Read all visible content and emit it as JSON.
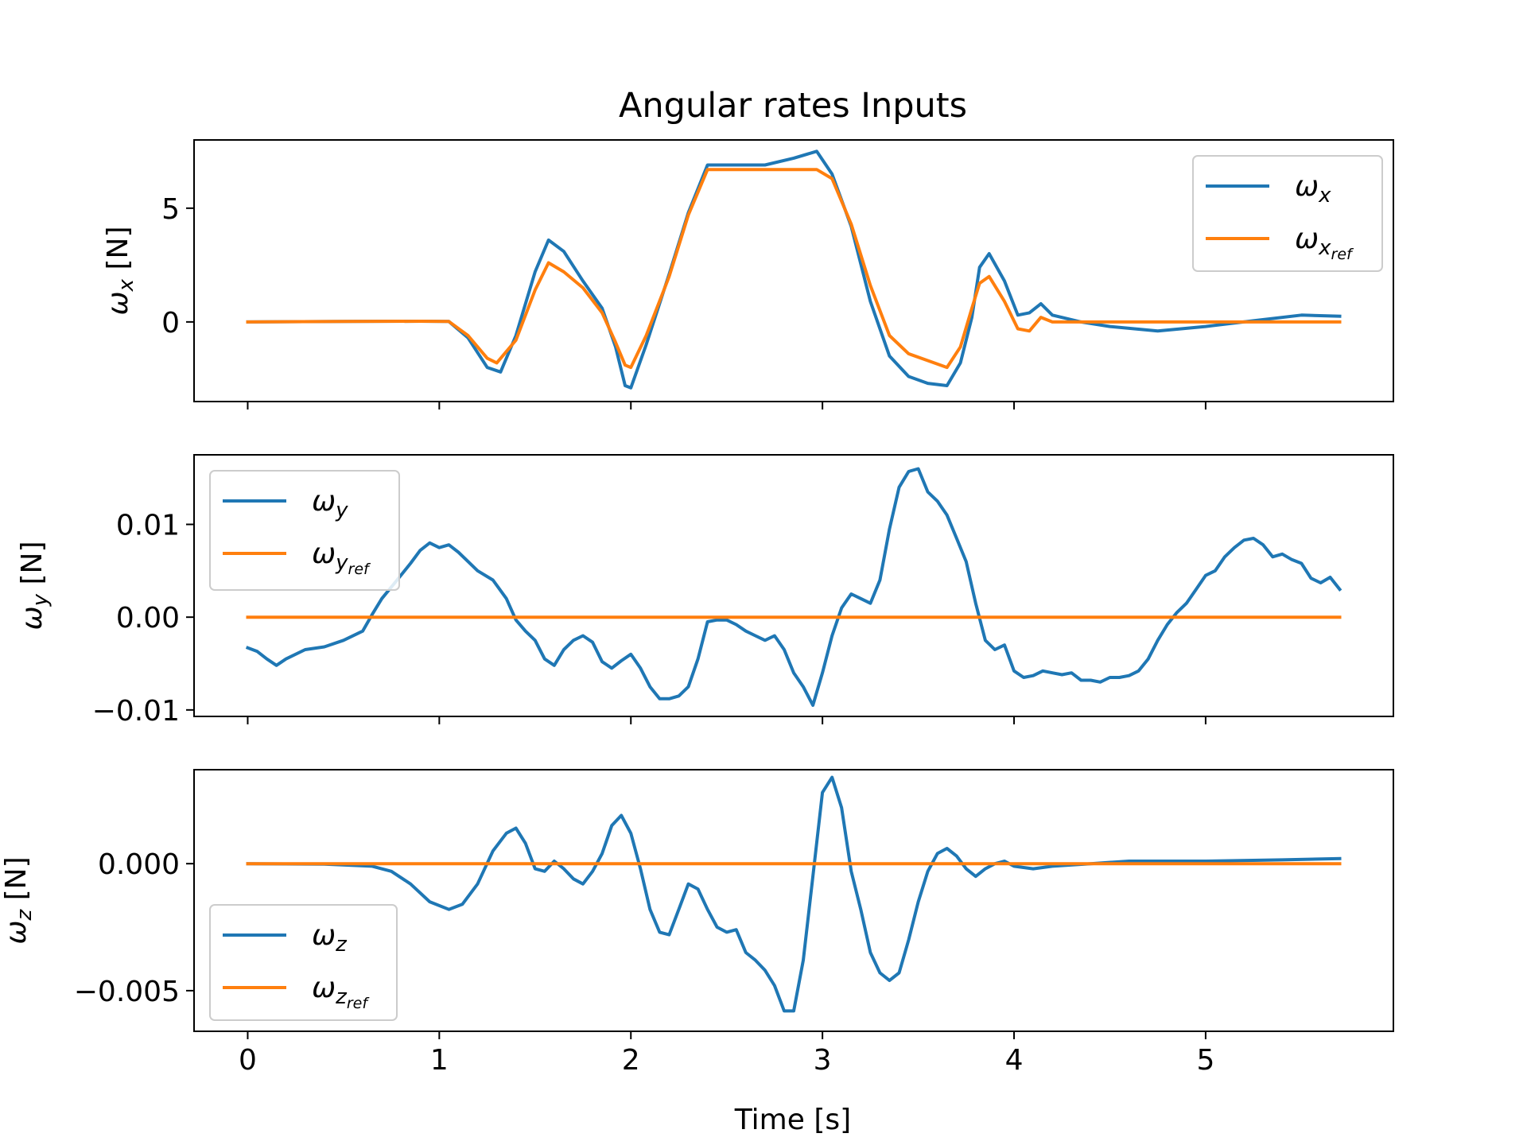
{
  "figure": {
    "title": "Angular rates Inputs",
    "xlabel": "Time [s]"
  },
  "colors": {
    "measured": "#1f77b4",
    "reference": "#ff7f0e",
    "axes": "#000000",
    "background": "#ffffff"
  },
  "chart_data": [
    {
      "type": "line",
      "ylabel": "ωx [N]",
      "ylabel_sym": "ω",
      "ylabel_sub": "x",
      "ylabel_unit": " [N]",
      "xlim": [
        -0.28,
        5.98
      ],
      "ylim": [
        -3.5,
        8.0
      ],
      "x_ticks": [
        0,
        1,
        2,
        3,
        4,
        5
      ],
      "x_tick_labels": [
        "0",
        "1",
        "2",
        "3",
        "4",
        "5"
      ],
      "y_ticks": [
        0,
        5
      ],
      "y_tick_labels": [
        "0",
        "5"
      ],
      "show_x_tick_labels": false,
      "legend": {
        "loc": "upper right",
        "entries": [
          {
            "sym": "ω",
            "sub": "x",
            "subsub": ""
          },
          {
            "sym": "ω",
            "sub": "x",
            "subsub": "ref"
          }
        ]
      },
      "series": [
        {
          "name": "ωx",
          "color": "#1f77b4",
          "x": [
            0,
            0.5,
            0.9,
            1.05,
            1.15,
            1.25,
            1.32,
            1.4,
            1.5,
            1.57,
            1.65,
            1.75,
            1.85,
            1.92,
            1.97,
            2.0,
            2.08,
            2.2,
            2.3,
            2.4,
            2.5,
            2.7,
            2.85,
            2.97,
            3.05,
            3.15,
            3.25,
            3.35,
            3.45,
            3.55,
            3.65,
            3.72,
            3.78,
            3.82,
            3.87,
            3.95,
            4.02,
            4.08,
            4.14,
            4.2,
            4.35,
            4.5,
            4.75,
            5.0,
            5.25,
            5.5,
            5.7
          ],
          "y": [
            0,
            0.02,
            0.03,
            0.02,
            -0.7,
            -2.0,
            -2.2,
            -0.6,
            2.2,
            3.6,
            3.1,
            1.8,
            0.6,
            -1.1,
            -2.8,
            -2.9,
            -1.0,
            2.1,
            4.8,
            6.9,
            6.9,
            6.9,
            7.2,
            7.5,
            6.5,
            4.2,
            0.9,
            -1.5,
            -2.4,
            -2.7,
            -2.8,
            -1.8,
            0.2,
            2.4,
            3.0,
            1.8,
            0.3,
            0.4,
            0.8,
            0.3,
            0.0,
            -0.2,
            -0.4,
            -0.2,
            0.05,
            0.3,
            0.25
          ]
        },
        {
          "name": "ωx_ref",
          "color": "#ff7f0e",
          "x": [
            0,
            0.5,
            0.9,
            1.05,
            1.15,
            1.25,
            1.3,
            1.4,
            1.5,
            1.57,
            1.65,
            1.75,
            1.85,
            1.92,
            1.97,
            2.0,
            2.08,
            2.2,
            2.3,
            2.4,
            2.5,
            2.7,
            2.85,
            2.97,
            3.05,
            3.15,
            3.25,
            3.35,
            3.45,
            3.55,
            3.65,
            3.72,
            3.78,
            3.82,
            3.87,
            3.95,
            4.02,
            4.08,
            4.14,
            4.2,
            4.35,
            4.5,
            4.75,
            5.0,
            5.25,
            5.5,
            5.7
          ],
          "y": [
            0,
            0.02,
            0.03,
            0.02,
            -0.6,
            -1.6,
            -1.8,
            -0.8,
            1.4,
            2.6,
            2.2,
            1.5,
            0.4,
            -0.9,
            -1.9,
            -2.0,
            -0.6,
            2.0,
            4.7,
            6.7,
            6.7,
            6.7,
            6.7,
            6.7,
            6.3,
            4.3,
            1.6,
            -0.6,
            -1.4,
            -1.7,
            -2.0,
            -1.1,
            0.6,
            1.7,
            2.0,
            0.9,
            -0.3,
            -0.4,
            0.2,
            0.0,
            0.0,
            0.0,
            0.0,
            0.0,
            0.0,
            0.0,
            0.0
          ]
        }
      ]
    },
    {
      "type": "line",
      "ylabel": "ωy [N]",
      "ylabel_sym": "ω",
      "ylabel_sub": "y",
      "ylabel_unit": " [N]",
      "xlim": [
        -0.28,
        5.98
      ],
      "ylim": [
        -0.0107,
        0.0175
      ],
      "x_ticks": [
        0,
        1,
        2,
        3,
        4,
        5
      ],
      "x_tick_labels": [
        "0",
        "1",
        "2",
        "3",
        "4",
        "5"
      ],
      "y_ticks": [
        -0.01,
        0.0,
        0.01
      ],
      "y_tick_labels": [
        "−0.01",
        "0.00",
        "0.01"
      ],
      "show_x_tick_labels": false,
      "legend": {
        "loc": "upper left",
        "entries": [
          {
            "sym": "ω",
            "sub": "y",
            "subsub": ""
          },
          {
            "sym": "ω",
            "sub": "y",
            "subsub": "ref"
          }
        ]
      },
      "series": [
        {
          "name": "ωy",
          "color": "#1f77b4",
          "x": [
            0,
            0.05,
            0.1,
            0.15,
            0.2,
            0.3,
            0.4,
            0.5,
            0.6,
            0.65,
            0.7,
            0.78,
            0.85,
            0.9,
            0.95,
            1.0,
            1.05,
            1.1,
            1.15,
            1.2,
            1.28,
            1.35,
            1.4,
            1.45,
            1.5,
            1.55,
            1.6,
            1.65,
            1.7,
            1.75,
            1.8,
            1.85,
            1.9,
            1.95,
            2.0,
            2.05,
            2.1,
            2.15,
            2.2,
            2.25,
            2.3,
            2.35,
            2.4,
            2.45,
            2.5,
            2.55,
            2.6,
            2.65,
            2.7,
            2.75,
            2.8,
            2.85,
            2.9,
            2.95,
            3.0,
            3.05,
            3.1,
            3.15,
            3.2,
            3.25,
            3.3,
            3.35,
            3.4,
            3.45,
            3.5,
            3.55,
            3.6,
            3.65,
            3.7,
            3.75,
            3.8,
            3.85,
            3.9,
            3.95,
            4.0,
            4.05,
            4.1,
            4.15,
            4.2,
            4.25,
            4.3,
            4.35,
            4.4,
            4.45,
            4.5,
            4.55,
            4.6,
            4.65,
            4.7,
            4.75,
            4.8,
            4.85,
            4.9,
            4.95,
            5.0,
            5.05,
            5.1,
            5.15,
            5.2,
            5.25,
            5.3,
            5.35,
            5.4,
            5.45,
            5.5,
            5.55,
            5.6,
            5.65,
            5.7
          ],
          "y": [
            -0.0033,
            -0.0037,
            -0.0045,
            -0.0052,
            -0.0045,
            -0.0035,
            -0.0032,
            -0.0025,
            -0.0015,
            0.0003,
            0.002,
            0.004,
            0.0058,
            0.0072,
            0.008,
            0.0075,
            0.0078,
            0.007,
            0.006,
            0.005,
            0.004,
            0.002,
            -0.0003,
            -0.0015,
            -0.0025,
            -0.0045,
            -0.0052,
            -0.0035,
            -0.0025,
            -0.002,
            -0.0027,
            -0.0048,
            -0.0055,
            -0.0047,
            -0.004,
            -0.0055,
            -0.0075,
            -0.0088,
            -0.0088,
            -0.0085,
            -0.0075,
            -0.0045,
            -0.0005,
            -0.0003,
            -0.0003,
            -0.0008,
            -0.0015,
            -0.002,
            -0.0025,
            -0.002,
            -0.0035,
            -0.006,
            -0.0075,
            -0.0095,
            -0.006,
            -0.002,
            0.001,
            0.0025,
            0.002,
            0.0015,
            0.004,
            0.0095,
            0.014,
            0.0157,
            0.016,
            0.0135,
            0.0125,
            0.011,
            0.0085,
            0.006,
            0.0015,
            -0.0025,
            -0.0035,
            -0.003,
            -0.0058,
            -0.0065,
            -0.0063,
            -0.0058,
            -0.006,
            -0.0062,
            -0.006,
            -0.0068,
            -0.0068,
            -0.007,
            -0.0065,
            -0.0065,
            -0.0063,
            -0.0058,
            -0.0045,
            -0.0025,
            -0.0008,
            0.0005,
            0.0015,
            0.003,
            0.0045,
            0.005,
            0.0065,
            0.0075,
            0.0083,
            0.0085,
            0.0078,
            0.0065,
            0.0068,
            0.0062,
            0.0058,
            0.0042,
            0.0037,
            0.0043,
            0.003
          ]
        },
        {
          "name": "ωy_ref",
          "color": "#ff7f0e",
          "x": [
            0,
            5.7
          ],
          "y": [
            0,
            0
          ]
        }
      ]
    },
    {
      "type": "line",
      "ylabel": "ωz [N]",
      "ylabel_sym": "ω",
      "ylabel_sub": "z",
      "ylabel_unit": " [N]",
      "xlim": [
        -0.28,
        5.98
      ],
      "ylim": [
        -0.0066,
        0.0037
      ],
      "x_ticks": [
        0,
        1,
        2,
        3,
        4,
        5
      ],
      "x_tick_labels": [
        "0",
        "1",
        "2",
        "3",
        "4",
        "5"
      ],
      "y_ticks": [
        -0.005,
        0.0
      ],
      "y_tick_labels": [
        "−0.005",
        "0.000"
      ],
      "show_x_tick_labels": true,
      "legend": {
        "loc": "lower left",
        "entries": [
          {
            "sym": "ω",
            "sub": "z",
            "subsub": ""
          },
          {
            "sym": "ω",
            "sub": "z",
            "subsub": "ref"
          }
        ]
      },
      "series": [
        {
          "name": "ωz",
          "color": "#1f77b4",
          "x": [
            0,
            0.4,
            0.65,
            0.75,
            0.85,
            0.95,
            1.05,
            1.12,
            1.2,
            1.28,
            1.35,
            1.4,
            1.45,
            1.5,
            1.55,
            1.6,
            1.65,
            1.7,
            1.75,
            1.8,
            1.85,
            1.9,
            1.95,
            2.0,
            2.05,
            2.1,
            2.15,
            2.2,
            2.25,
            2.3,
            2.35,
            2.4,
            2.45,
            2.5,
            2.55,
            2.6,
            2.65,
            2.7,
            2.75,
            2.8,
            2.85,
            2.9,
            2.95,
            3.0,
            3.05,
            3.1,
            3.15,
            3.2,
            3.25,
            3.3,
            3.35,
            3.4,
            3.45,
            3.5,
            3.55,
            3.6,
            3.65,
            3.7,
            3.75,
            3.8,
            3.85,
            3.9,
            3.95,
            4.0,
            4.1,
            4.2,
            4.4,
            4.6,
            5.0,
            5.4,
            5.7
          ],
          "y": [
            0,
            -2e-05,
            -0.0001,
            -0.0003,
            -0.0008,
            -0.0015,
            -0.0018,
            -0.0016,
            -0.0008,
            0.0005,
            0.0012,
            0.0014,
            0.0008,
            -0.0002,
            -0.0003,
            0.0001,
            -0.0002,
            -0.0006,
            -0.0008,
            -0.0003,
            0.0004,
            0.0015,
            0.0019,
            0.0012,
            -0.0002,
            -0.0018,
            -0.0027,
            -0.0028,
            -0.0018,
            -0.0008,
            -0.001,
            -0.0018,
            -0.0025,
            -0.0027,
            -0.0026,
            -0.0035,
            -0.0038,
            -0.0042,
            -0.0048,
            -0.0058,
            -0.0058,
            -0.0038,
            -0.0005,
            0.0028,
            0.0034,
            0.0022,
            -0.0003,
            -0.0018,
            -0.0035,
            -0.0043,
            -0.0046,
            -0.0043,
            -0.003,
            -0.0015,
            -0.0003,
            0.0004,
            0.0006,
            0.0003,
            -0.0002,
            -0.0005,
            -0.0002,
            0.0,
            0.0001,
            -0.0001,
            -0.0002,
            -0.0001,
            0.0,
            0.0001,
            0.0001,
            0.00015,
            0.0002
          ]
        },
        {
          "name": "ωz_ref",
          "color": "#ff7f0e",
          "x": [
            0,
            5.7
          ],
          "y": [
            0,
            0
          ]
        }
      ]
    }
  ]
}
